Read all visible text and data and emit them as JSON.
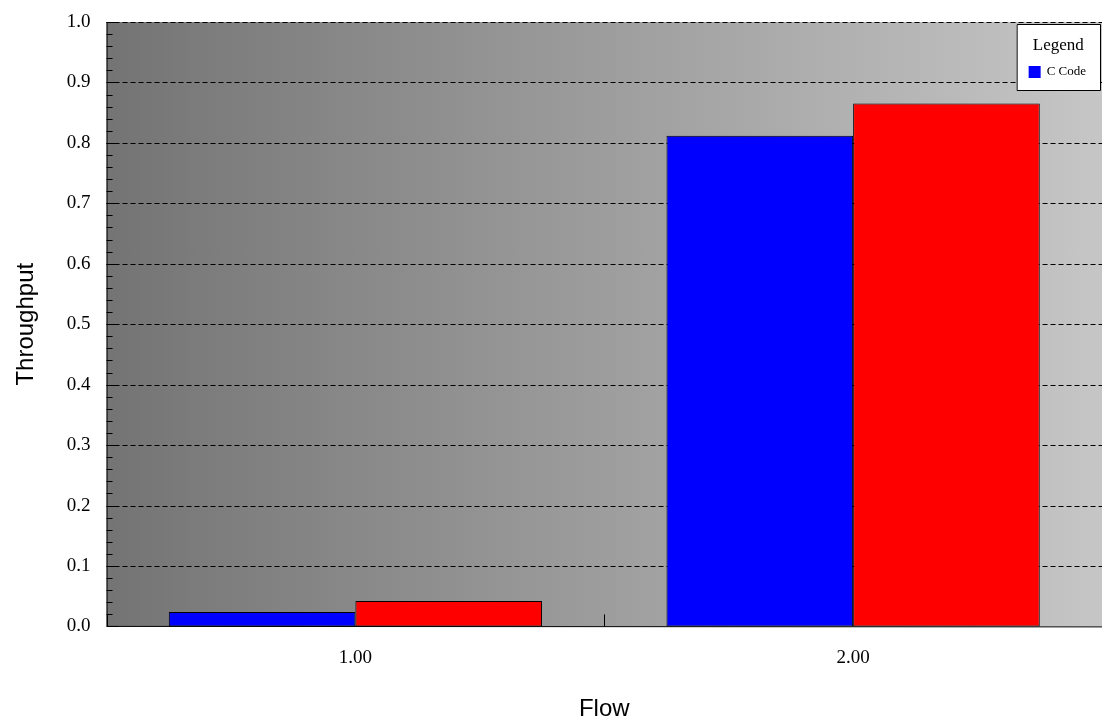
{
  "chart_data": {
    "type": "bar",
    "xlabel": "Flow",
    "ylabel": "Throughput",
    "legend_title": "Legend",
    "categories": [
      "1.00",
      "2.00"
    ],
    "series": [
      {
        "name": "C Code",
        "color": "#0000ff",
        "values": [
          0.024,
          0.812
        ]
      },
      {
        "color": "#ff0000",
        "values": [
          0.042,
          0.865
        ]
      }
    ],
    "ylim": [
      0,
      1
    ],
    "yticks": [
      {
        "value": 0,
        "label": "0.0"
      },
      {
        "value": 0.02,
        "label": null
      },
      {
        "value": 0.04,
        "label": null
      },
      {
        "value": 0.06,
        "label": null
      },
      {
        "value": 0.08,
        "label": null
      },
      "0.1",
      {
        "value": 0.12,
        "label": null
      },
      {
        "value": 0.14,
        "label": null
      },
      {
        "value": 0.16,
        "label": null
      },
      {
        "value": 0.18,
        "label": null
      },
      {
        "value": 0.2,
        "label": "0.2"
      },
      {
        "value": 0.22,
        "label": null
      },
      {
        "value": 0.24,
        "label": null
      },
      {
        "value": 0.26,
        "label": null
      },
      {
        "value": 0.28,
        "label": null
      },
      {
        "value": 0.3,
        "label": "0.3"
      },
      {
        "value": 0.32,
        "label": null
      },
      {
        "value": 0.34,
        "label": null
      },
      {
        "value": 0.36,
        "label": null
      },
      {
        "value": 0.38,
        "label": null
      },
      {
        "value": 0.4,
        "label": "0.4"
      },
      {
        "value": 0.42,
        "label": null
      },
      {
        "value": 0.44,
        "label": null
      },
      {
        "value": 0.46,
        "label": null
      },
      {
        "value": 0.48,
        "label": null
      },
      {
        "value": 0.5,
        "label": "0.5"
      },
      {
        "value": 0.52,
        "label": null
      },
      {
        "value": 0.54,
        "label": null
      },
      {
        "value": 0.56,
        "label": null
      },
      {
        "value": 0.58,
        "label": null
      },
      {
        "value": 0.6,
        "label": "0.6"
      },
      {
        "value": 0.62,
        "label": null
      },
      {
        "value": 0.64,
        "label": null
      },
      {
        "value": 0.66,
        "label": null
      },
      {
        "value": 0.68,
        "label": null
      },
      {
        "value": 0.7,
        "label": "0.7"
      },
      {
        "value": 0.72,
        "label": null
      },
      {
        "value": 0.74,
        "label": null
      },
      {
        "value": 0.76,
        "label": null
      },
      {
        "value": 0.78,
        "label": null
      },
      {
        "value": 0.8,
        "label": "0.8"
      },
      {
        "value": 0.82,
        "label": null
      },
      {
        "value": 0.84,
        "label": null
      },
      {
        "value": 0.86,
        "label": null
      },
      {
        "value": 0.88,
        "label": null
      },
      {
        "value": 0.9,
        "label": "0.9"
      },
      {
        "value": 0.92,
        "label": null
      },
      {
        "value": 0.94,
        "label": null
      },
      {
        "value": 0.96,
        "label": null
      },
      {
        "value": 0.98,
        "label": null
      },
      {
        "value": 1,
        "label": "1.0"
      }
    ],
    "grid": "y",
    "legend": "top right"
  }
}
